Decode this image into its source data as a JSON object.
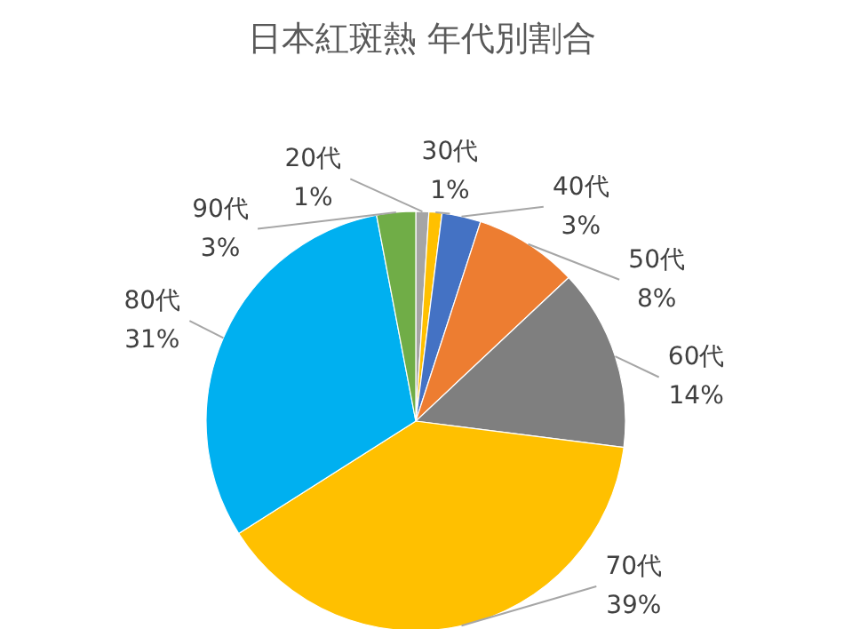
{
  "chart_data": {
    "type": "pie",
    "title": "日本紅斑熱  年代別割合",
    "categories": [
      "20代",
      "30代",
      "40代",
      "50代",
      "60代",
      "70代",
      "80代",
      "90代"
    ],
    "values": [
      1,
      1,
      3,
      8,
      14,
      39,
      31,
      3
    ],
    "value_labels": [
      "1%",
      "1%",
      "3%",
      "8%",
      "14%",
      "39%",
      "31%",
      "3%"
    ],
    "colors": [
      "#a5a5a5",
      "#ffc000",
      "#4472c4",
      "#ed7d31",
      "#7f7f7f",
      "#ffc000",
      "#00b0f0",
      "#70ad47"
    ],
    "legend": false
  }
}
